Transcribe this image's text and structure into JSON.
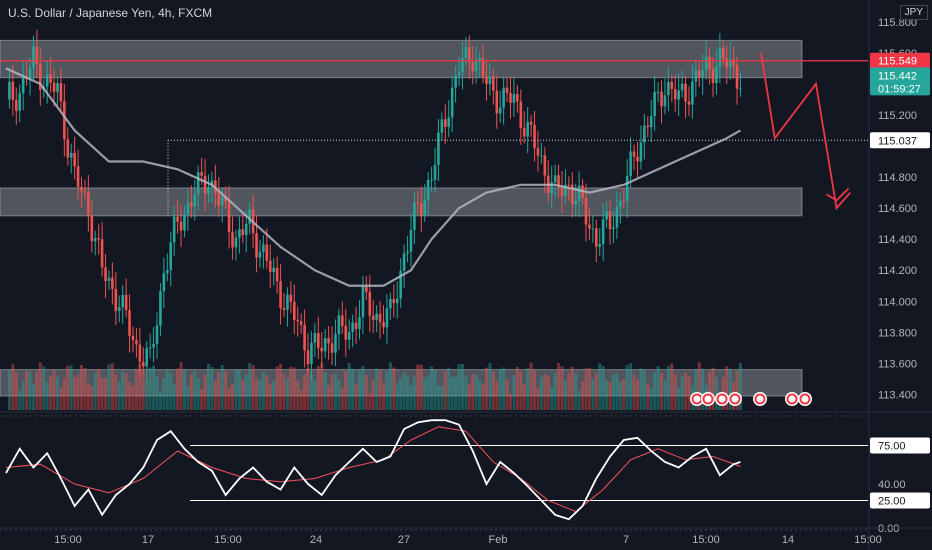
{
  "header": {
    "title": "U.S. Dollar / Japanese Yen, 4h, FXCM",
    "currency": "JPY"
  },
  "colors": {
    "bg": "#131722",
    "up": "#26a69a",
    "down": "#ef5350",
    "zone": "#cfd3dc",
    "ma": "#b2b5be",
    "red_line": "#f23645",
    "rsi_k": "#ffffff",
    "rsi_d": "#f7525f"
  },
  "price_axis": {
    "ticks": [
      "115.800",
      "115.600",
      "115.200",
      "114.800",
      "114.600",
      "114.400",
      "114.200",
      "114.000",
      "113.800",
      "113.600",
      "113.400"
    ],
    "labels": {
      "red_price": "115.549",
      "last_price": "115.442",
      "countdown": "01:59:27",
      "dotted_level": "115.037"
    }
  },
  "time_axis": {
    "ticks": [
      "15:00",
      "17",
      "15:00",
      "24",
      "27",
      "Feb",
      "7",
      "15:00",
      "14",
      "15:00"
    ]
  },
  "oscillator": {
    "levels": [
      "75.00",
      "25.00"
    ],
    "ticks": [
      "40.00",
      "0.00"
    ]
  },
  "chart_data": [
    {
      "type": "candlestick",
      "title": "U.S. Dollar / Japanese Yen, 4h, FXCM",
      "y_axis_range": [
        113.3,
        115.85
      ],
      "zones": [
        {
          "from": 115.44,
          "to": 115.68
        },
        {
          "from": 114.55,
          "to": 114.73
        },
        {
          "from": 113.39,
          "to": 113.56
        }
      ],
      "horizontal_lines": [
        115.549,
        115.037
      ],
      "anchors": [
        [
          0,
          115.3
        ],
        [
          4,
          115.35
        ],
        [
          8,
          115.55
        ],
        [
          12,
          115.4
        ],
        [
          15,
          115.35
        ],
        [
          20,
          114.8
        ],
        [
          24,
          114.6
        ],
        [
          28,
          114.2
        ],
        [
          33,
          114.0
        ],
        [
          38,
          113.7
        ],
        [
          42,
          113.6
        ],
        [
          46,
          114.2
        ],
        [
          50,
          114.5
        ],
        [
          55,
          114.7
        ],
        [
          59,
          114.8
        ],
        [
          63,
          114.6
        ],
        [
          67,
          114.4
        ],
        [
          71,
          114.5
        ],
        [
          75,
          114.3
        ],
        [
          79,
          114.1
        ],
        [
          84,
          113.9
        ],
        [
          88,
          113.7
        ],
        [
          92,
          113.7
        ],
        [
          96,
          113.8
        ],
        [
          100,
          113.8
        ],
        [
          104,
          114.0
        ],
        [
          108,
          113.9
        ],
        [
          112,
          113.9
        ],
        [
          116,
          114.3
        ],
        [
          120,
          114.6
        ],
        [
          124,
          114.8
        ],
        [
          128,
          115.2
        ],
        [
          132,
          115.5
        ],
        [
          136,
          115.6
        ],
        [
          140,
          115.4
        ],
        [
          144,
          115.3
        ],
        [
          148,
          115.3
        ],
        [
          152,
          115.1
        ],
        [
          156,
          114.9
        ],
        [
          160,
          114.7
        ],
        [
          164,
          114.75
        ],
        [
          168,
          114.6
        ],
        [
          172,
          114.4
        ],
        [
          176,
          114.5
        ],
        [
          180,
          114.7
        ],
        [
          184,
          115.0
        ],
        [
          188,
          115.2
        ],
        [
          192,
          115.4
        ],
        [
          196,
          115.3
        ],
        [
          200,
          115.4
        ],
        [
          204,
          115.5
        ],
        [
          208,
          115.55
        ],
        [
          212,
          115.5
        ],
        [
          214,
          115.44
        ]
      ],
      "moving_average": [
        [
          0,
          115.5
        ],
        [
          10,
          115.4
        ],
        [
          20,
          115.1
        ],
        [
          30,
          114.9
        ],
        [
          40,
          114.9
        ],
        [
          50,
          114.85
        ],
        [
          60,
          114.75
        ],
        [
          70,
          114.55
        ],
        [
          80,
          114.35
        ],
        [
          90,
          114.2
        ],
        [
          100,
          114.1
        ],
        [
          110,
          114.1
        ],
        [
          118,
          114.2
        ],
        [
          124,
          114.4
        ],
        [
          132,
          114.6
        ],
        [
          140,
          114.7
        ],
        [
          150,
          114.75
        ],
        [
          160,
          114.75
        ],
        [
          170,
          114.7
        ],
        [
          180,
          114.75
        ],
        [
          190,
          114.85
        ],
        [
          200,
          114.95
        ],
        [
          210,
          115.05
        ],
        [
          214,
          115.1
        ]
      ],
      "forecast_path": [
        [
          220,
          115.6
        ],
        [
          224,
          115.05
        ],
        [
          236,
          115.4
        ],
        [
          242,
          114.6
        ],
        [
          246,
          114.7
        ]
      ]
    },
    {
      "type": "line",
      "title": "",
      "y_axis_range": [
        0,
        100
      ],
      "series": [
        {
          "values": [
            [
              0,
              50
            ],
            [
              4,
              72
            ],
            [
              8,
              55
            ],
            [
              12,
              68
            ],
            [
              16,
              45
            ],
            [
              20,
              20
            ],
            [
              24,
              35
            ],
            [
              28,
              12
            ],
            [
              32,
              30
            ],
            [
              36,
              40
            ],
            [
              40,
              55
            ],
            [
              44,
              80
            ],
            [
              48,
              88
            ],
            [
              52,
              72
            ],
            [
              56,
              60
            ],
            [
              60,
              52
            ],
            [
              64,
              30
            ],
            [
              68,
              45
            ],
            [
              72,
              55
            ],
            [
              76,
              42
            ],
            [
              80,
              35
            ],
            [
              84,
              55
            ],
            [
              88,
              40
            ],
            [
              92,
              30
            ],
            [
              96,
              48
            ],
            [
              100,
              60
            ],
            [
              104,
              72
            ],
            [
              108,
              60
            ],
            [
              112,
              65
            ],
            [
              116,
              90
            ],
            [
              120,
              96
            ],
            [
              124,
              98
            ],
            [
              128,
              98
            ],
            [
              132,
              94
            ],
            [
              136,
              70
            ],
            [
              140,
              40
            ],
            [
              144,
              60
            ],
            [
              148,
              50
            ],
            [
              152,
              38
            ],
            [
              156,
              25
            ],
            [
              160,
              12
            ],
            [
              164,
              8
            ],
            [
              168,
              20
            ],
            [
              172,
              45
            ],
            [
              176,
              65
            ],
            [
              180,
              80
            ],
            [
              184,
              82
            ],
            [
              188,
              70
            ],
            [
              192,
              60
            ],
            [
              196,
              55
            ],
            [
              200,
              65
            ],
            [
              204,
              72
            ],
            [
              208,
              48
            ],
            [
              212,
              58
            ],
            [
              214,
              60
            ]
          ]
        },
        {
          "values": [
            [
              0,
              55
            ],
            [
              10,
              58
            ],
            [
              20,
              40
            ],
            [
              30,
              32
            ],
            [
              40,
              45
            ],
            [
              50,
              70
            ],
            [
              60,
              55
            ],
            [
              70,
              45
            ],
            [
              80,
              42
            ],
            [
              90,
              45
            ],
            [
              100,
              55
            ],
            [
              110,
              62
            ],
            [
              118,
              80
            ],
            [
              126,
              92
            ],
            [
              134,
              88
            ],
            [
              142,
              60
            ],
            [
              150,
              45
            ],
            [
              158,
              25
            ],
            [
              166,
              15
            ],
            [
              174,
              35
            ],
            [
              182,
              62
            ],
            [
              190,
              72
            ],
            [
              198,
              62
            ],
            [
              206,
              65
            ],
            [
              214,
              56
            ]
          ]
        }
      ],
      "levels": [
        75,
        25
      ]
    }
  ]
}
